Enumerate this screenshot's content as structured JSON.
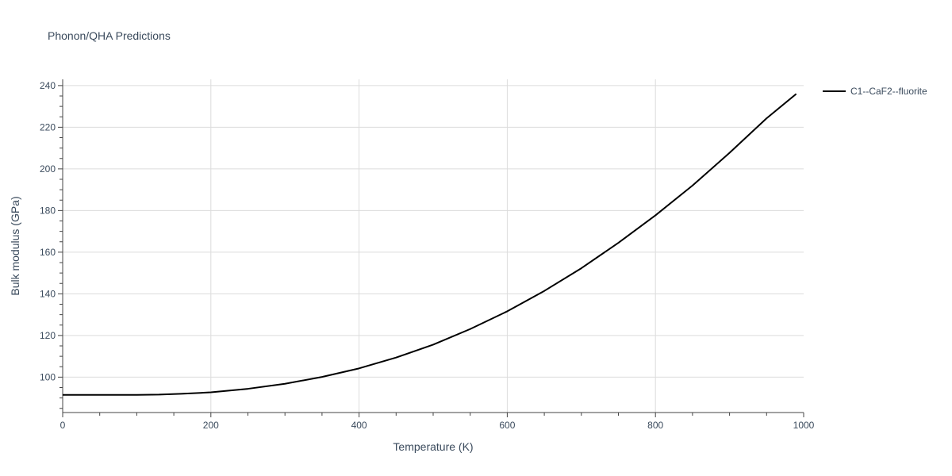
{
  "chart_data": {
    "type": "line",
    "title": "Phonon/QHA Predictions",
    "xlabel": "Temperature (K)",
    "ylabel": "Bulk modulus (GPa)",
    "xlim": [
      0,
      1000
    ],
    "ylim": [
      83,
      243
    ],
    "xticks": [
      0,
      200,
      400,
      600,
      800,
      1000
    ],
    "yticks": [
      100,
      120,
      140,
      160,
      180,
      200,
      220,
      240
    ],
    "grid": true,
    "legend_position": "top-right",
    "series": [
      {
        "name": "C1--CaF2--fluorite",
        "color": "#000000",
        "x": [
          0,
          50,
          100,
          130,
          160,
          200,
          250,
          300,
          350,
          400,
          450,
          500,
          550,
          600,
          650,
          700,
          750,
          800,
          850,
          900,
          950,
          990
        ],
        "y": [
          91.5,
          91.5,
          91.5,
          91.6,
          92.0,
          92.7,
          94.4,
          96.8,
          100.1,
          104.2,
          109.4,
          115.6,
          123.1,
          131.6,
          141.4,
          152.3,
          164.5,
          177.7,
          192.0,
          207.7,
          224.3,
          236.0
        ]
      }
    ]
  }
}
